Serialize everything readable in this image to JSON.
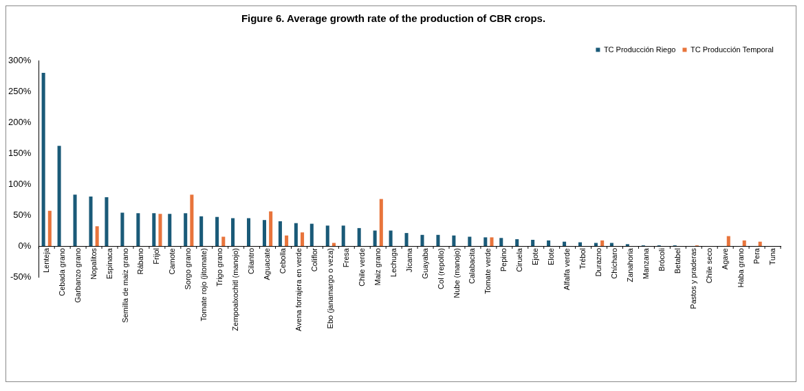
{
  "chart_data": {
    "type": "bar",
    "title": "Figure 6. Average growth rate of the production of CBR crops.",
    "categories": [
      "Lenteja",
      "Cebada grano",
      "Garbanzo grano",
      "Nopalitos",
      "Espinaca",
      "Semilla de maiz grano",
      "Rábano",
      "Frijol",
      "Camote",
      "Sorgo grano",
      "Tomate rojo (jitomate)",
      "Trigo grano",
      "Zempoalxochitl (manojo)",
      "Cilantro",
      "Aguacate",
      "Cebolla",
      "Avena forrajera en verde",
      "Coliflor",
      "Ebo (janamargo o veza)",
      "Fresa",
      "Chile verde",
      "Maiz grano",
      "Lechuga",
      "Jícama",
      "Guayaba",
      "Col (repollo)",
      "Nube (manojo)",
      "Calabacita",
      "Tomate verde",
      "Pepino",
      "Ciruela",
      "Ejote",
      "Elote",
      "Alfalfa verde",
      "Trébol",
      "Durazno",
      "Chícharo",
      "Zanahoria",
      "Manzana",
      "Brócoli",
      "Betabel",
      "Pastos y praderas",
      "Chile seco",
      "Agave",
      "Haba grano",
      "Pera",
      "Tuna"
    ],
    "series": [
      {
        "name": "TC Producción Riego",
        "color": "#1a5a78",
        "values": [
          280,
          162,
          83,
          80,
          79,
          54,
          53,
          53,
          52,
          53,
          48,
          47,
          45,
          45,
          42,
          40,
          37,
          36,
          33,
          33,
          29,
          25,
          25,
          21,
          18,
          18,
          17,
          15,
          14,
          13,
          11,
          10,
          9,
          7,
          6,
          5,
          5,
          3,
          1,
          1,
          1,
          0,
          0,
          0,
          0,
          0,
          0
        ]
      },
      {
        "name": "TC Producción Temporal",
        "color": "#e8743b",
        "values": [
          57,
          0,
          0,
          32,
          0,
          0,
          0,
          52,
          0,
          83,
          0,
          15,
          0,
          0,
          56,
          17,
          22,
          0,
          5,
          0,
          0,
          76,
          0,
          0,
          0,
          0,
          0,
          0,
          14,
          0,
          0,
          0,
          0,
          0,
          0,
          9,
          0,
          0,
          0,
          0,
          0,
          1,
          0,
          16,
          9,
          7,
          0
        ]
      }
    ],
    "ylim": [
      -50,
      300
    ],
    "yticks": [
      {
        "value": -50,
        "label": "-50%"
      },
      {
        "value": 0,
        "label": "0%"
      },
      {
        "value": 50,
        "label": "50%"
      },
      {
        "value": 100,
        "label": "100%"
      },
      {
        "value": 150,
        "label": "150%"
      },
      {
        "value": 200,
        "label": "200%"
      },
      {
        "value": 250,
        "label": "250%"
      },
      {
        "value": 300,
        "label": "300%"
      }
    ],
    "grid": false,
    "legend": "top right"
  }
}
